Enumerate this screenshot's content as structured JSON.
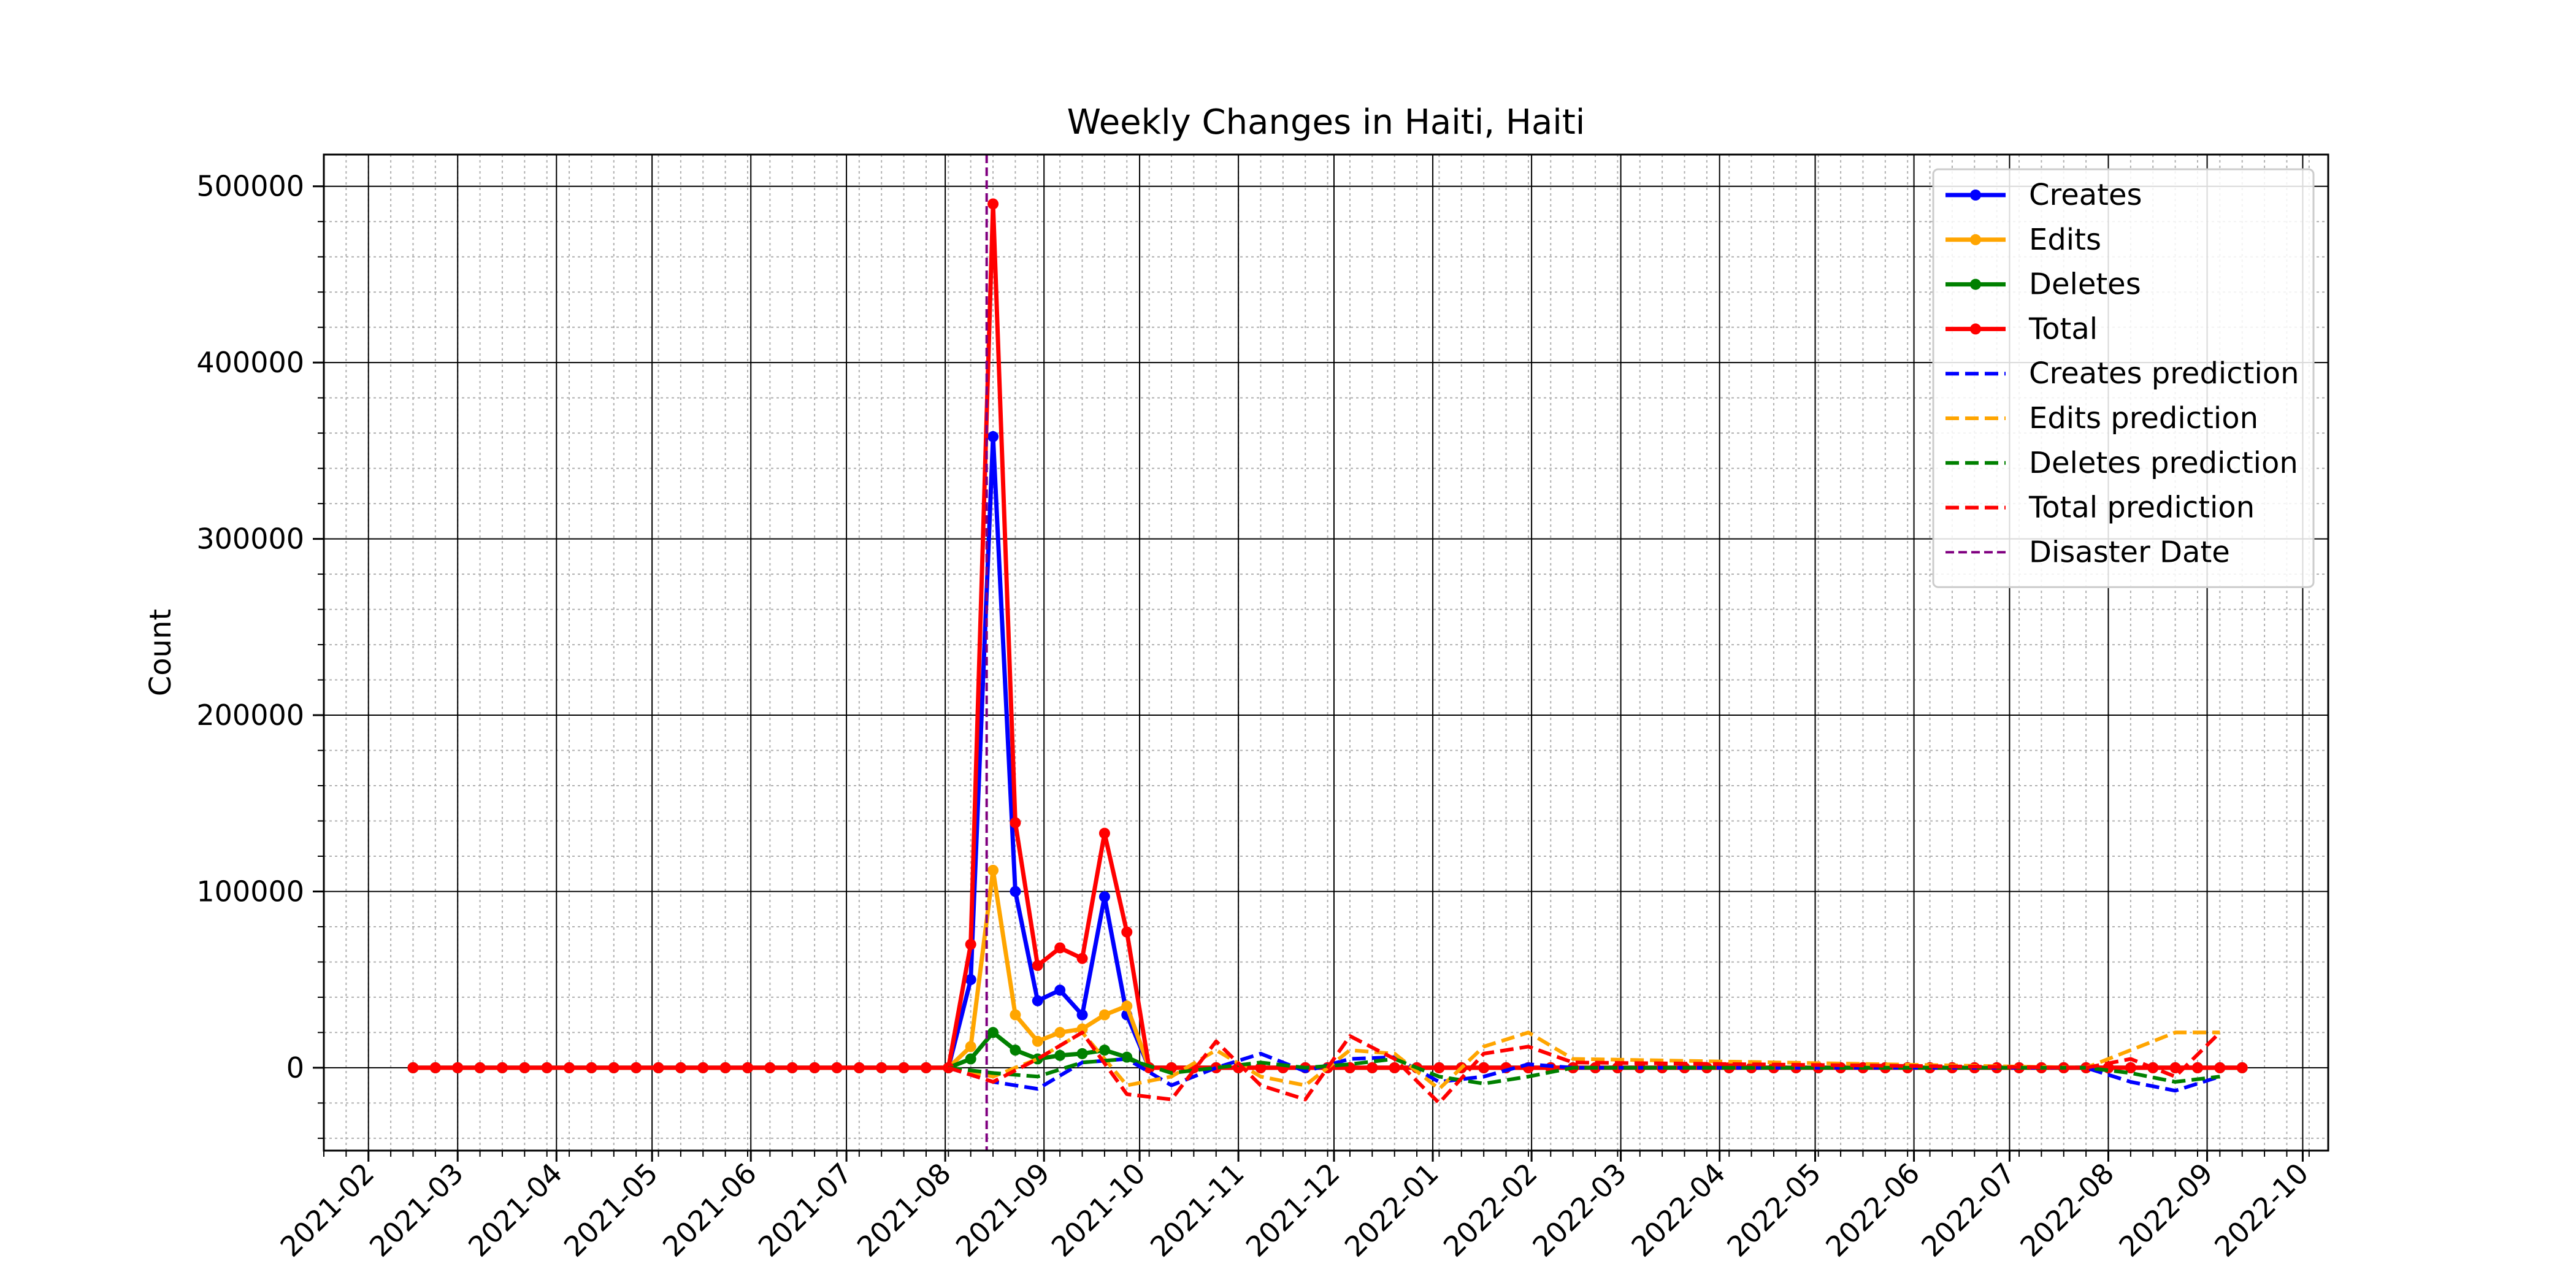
{
  "chart_data": {
    "type": "line",
    "title": "Weekly Changes in Haiti, Haiti",
    "xlabel": "",
    "ylabel": "Count",
    "x_axis": "date",
    "xlim": [
      "2021-01-18",
      "2022-10-09"
    ],
    "ylim": [
      -47000,
      518000
    ],
    "x_tick_labels": [
      "2021-02",
      "2021-03",
      "2021-04",
      "2021-05",
      "2021-06",
      "2021-07",
      "2021-08",
      "2021-09",
      "2021-10",
      "2021-11",
      "2021-12",
      "2022-01",
      "2022-02",
      "2022-03",
      "2022-04",
      "2022-05",
      "2022-06",
      "2022-07",
      "2022-08",
      "2022-09",
      "2022-10"
    ],
    "x_ticks": [
      "2021-02-01",
      "2021-03-01",
      "2021-04-01",
      "2021-05-01",
      "2021-06-01",
      "2021-07-01",
      "2021-08-01",
      "2021-09-01",
      "2021-10-01",
      "2021-11-01",
      "2021-12-01",
      "2022-01-01",
      "2022-02-01",
      "2022-03-01",
      "2022-04-01",
      "2022-05-01",
      "2022-06-01",
      "2022-07-01",
      "2022-08-01",
      "2022-09-01",
      "2022-10-01"
    ],
    "y_tick_labels": [
      "0",
      "100000",
      "200000",
      "300000",
      "400000",
      "500000"
    ],
    "y_ticks": [
      0,
      100000,
      200000,
      300000,
      400000,
      500000
    ],
    "grid": true,
    "minor_grid": true,
    "legend_position": "top-right",
    "series": [
      {
        "name": "Creates",
        "style": "solid-marker",
        "color": "#0000ff",
        "x": [
          "2021-08-02",
          "2021-08-09",
          "2021-08-16",
          "2021-08-23",
          "2021-08-30",
          "2021-09-06",
          "2021-09-13",
          "2021-09-20",
          "2021-09-27",
          "2021-10-04"
        ],
        "y": [
          0,
          50000,
          358000,
          100000,
          38000,
          44000,
          30000,
          97000,
          30000,
          0
        ]
      },
      {
        "name": "Edits",
        "style": "solid-marker",
        "color": "#ffa500",
        "x": [
          "2021-08-02",
          "2021-08-09",
          "2021-08-16",
          "2021-08-23",
          "2021-08-30",
          "2021-09-06",
          "2021-09-13",
          "2021-09-20",
          "2021-09-27",
          "2021-10-04"
        ],
        "y": [
          0,
          12000,
          112000,
          30000,
          15000,
          20000,
          22000,
          30000,
          35000,
          0
        ]
      },
      {
        "name": "Deletes",
        "style": "solid-marker",
        "color": "#008000",
        "x": [
          "2021-08-02",
          "2021-08-09",
          "2021-08-16",
          "2021-08-23",
          "2021-08-30",
          "2021-09-06",
          "2021-09-13",
          "2021-09-20",
          "2021-09-27",
          "2021-10-04"
        ],
        "y": [
          0,
          5000,
          20000,
          10000,
          5000,
          7000,
          8000,
          10000,
          6000,
          0
        ]
      },
      {
        "name": "Total",
        "style": "solid-marker",
        "color": "#ff0000",
        "x": [
          "2021-08-02",
          "2021-08-09",
          "2021-08-16",
          "2021-08-23",
          "2021-08-30",
          "2021-09-06",
          "2021-09-13",
          "2021-09-20",
          "2021-09-27",
          "2021-10-04"
        ],
        "y": [
          0,
          70000,
          490000,
          139000,
          58000,
          68000,
          62000,
          133000,
          77000,
          0
        ]
      },
      {
        "name": "Creates prediction",
        "style": "dashed",
        "color": "#0000ff",
        "x": [
          "2021-08-02",
          "2021-08-16",
          "2021-08-30",
          "2021-09-13",
          "2021-09-27",
          "2021-10-11",
          "2021-10-25",
          "2021-11-08",
          "2021-11-22",
          "2021-12-06",
          "2021-12-20",
          "2022-01-03",
          "2022-01-17",
          "2022-01-31",
          "2022-02-14",
          "2022-07-25",
          "2022-08-08",
          "2022-08-22",
          "2022-09-05"
        ],
        "y": [
          0,
          -8000,
          -12000,
          3000,
          5000,
          -10000,
          0,
          8000,
          -2000,
          5000,
          6000,
          -8000,
          -5000,
          2000,
          0,
          0,
          -8000,
          -13000,
          -5000
        ]
      },
      {
        "name": "Edits prediction",
        "style": "dashed",
        "color": "#ffa500",
        "x": [
          "2021-08-02",
          "2021-08-16",
          "2021-08-30",
          "2021-09-13",
          "2021-09-27",
          "2021-10-11",
          "2021-10-25",
          "2021-11-08",
          "2021-11-22",
          "2021-12-06",
          "2021-12-20",
          "2022-01-03",
          "2022-01-17",
          "2022-01-31",
          "2022-02-14",
          "2022-07-25",
          "2022-08-08",
          "2022-08-22",
          "2022-09-05"
        ],
        "y": [
          0,
          -5000,
          5000,
          20000,
          -10000,
          -5000,
          10000,
          -5000,
          -10000,
          10000,
          8000,
          -12000,
          12000,
          20000,
          5000,
          0,
          10000,
          20000,
          20000
        ]
      },
      {
        "name": "Deletes prediction",
        "style": "dashed",
        "color": "#008000",
        "x": [
          "2021-08-02",
          "2021-08-16",
          "2021-08-30",
          "2021-09-13",
          "2021-09-27",
          "2021-10-11",
          "2021-10-25",
          "2021-11-08",
          "2021-11-22",
          "2021-12-06",
          "2021-12-20",
          "2022-01-03",
          "2022-01-17",
          "2022-01-31",
          "2022-02-14",
          "2022-07-25",
          "2022-08-08",
          "2022-08-22",
          "2022-09-05"
        ],
        "y": [
          0,
          -3000,
          -5000,
          3000,
          5000,
          -3000,
          0,
          3000,
          0,
          2000,
          5000,
          -5000,
          -9000,
          -5000,
          0,
          0,
          -3000,
          -8000,
          -5000
        ]
      },
      {
        "name": "Total prediction",
        "style": "dashed",
        "color": "#ff0000",
        "x": [
          "2021-08-02",
          "2021-08-16",
          "2021-08-30",
          "2021-09-13",
          "2021-09-27",
          "2021-10-11",
          "2021-10-25",
          "2021-11-08",
          "2021-11-22",
          "2021-12-06",
          "2021-12-20",
          "2022-01-03",
          "2022-01-17",
          "2022-01-31",
          "2022-02-14",
          "2022-07-25",
          "2022-08-08",
          "2022-08-22",
          "2022-09-05"
        ],
        "y": [
          0,
          -8000,
          5000,
          20000,
          -15000,
          -18000,
          15000,
          -10000,
          -18000,
          18000,
          5000,
          -20000,
          8000,
          12000,
          3000,
          0,
          5000,
          -5000,
          20000
        ]
      }
    ],
    "disaster_date": {
      "name": "Disaster Date",
      "x": "2021-08-14",
      "color": "#800080"
    }
  }
}
